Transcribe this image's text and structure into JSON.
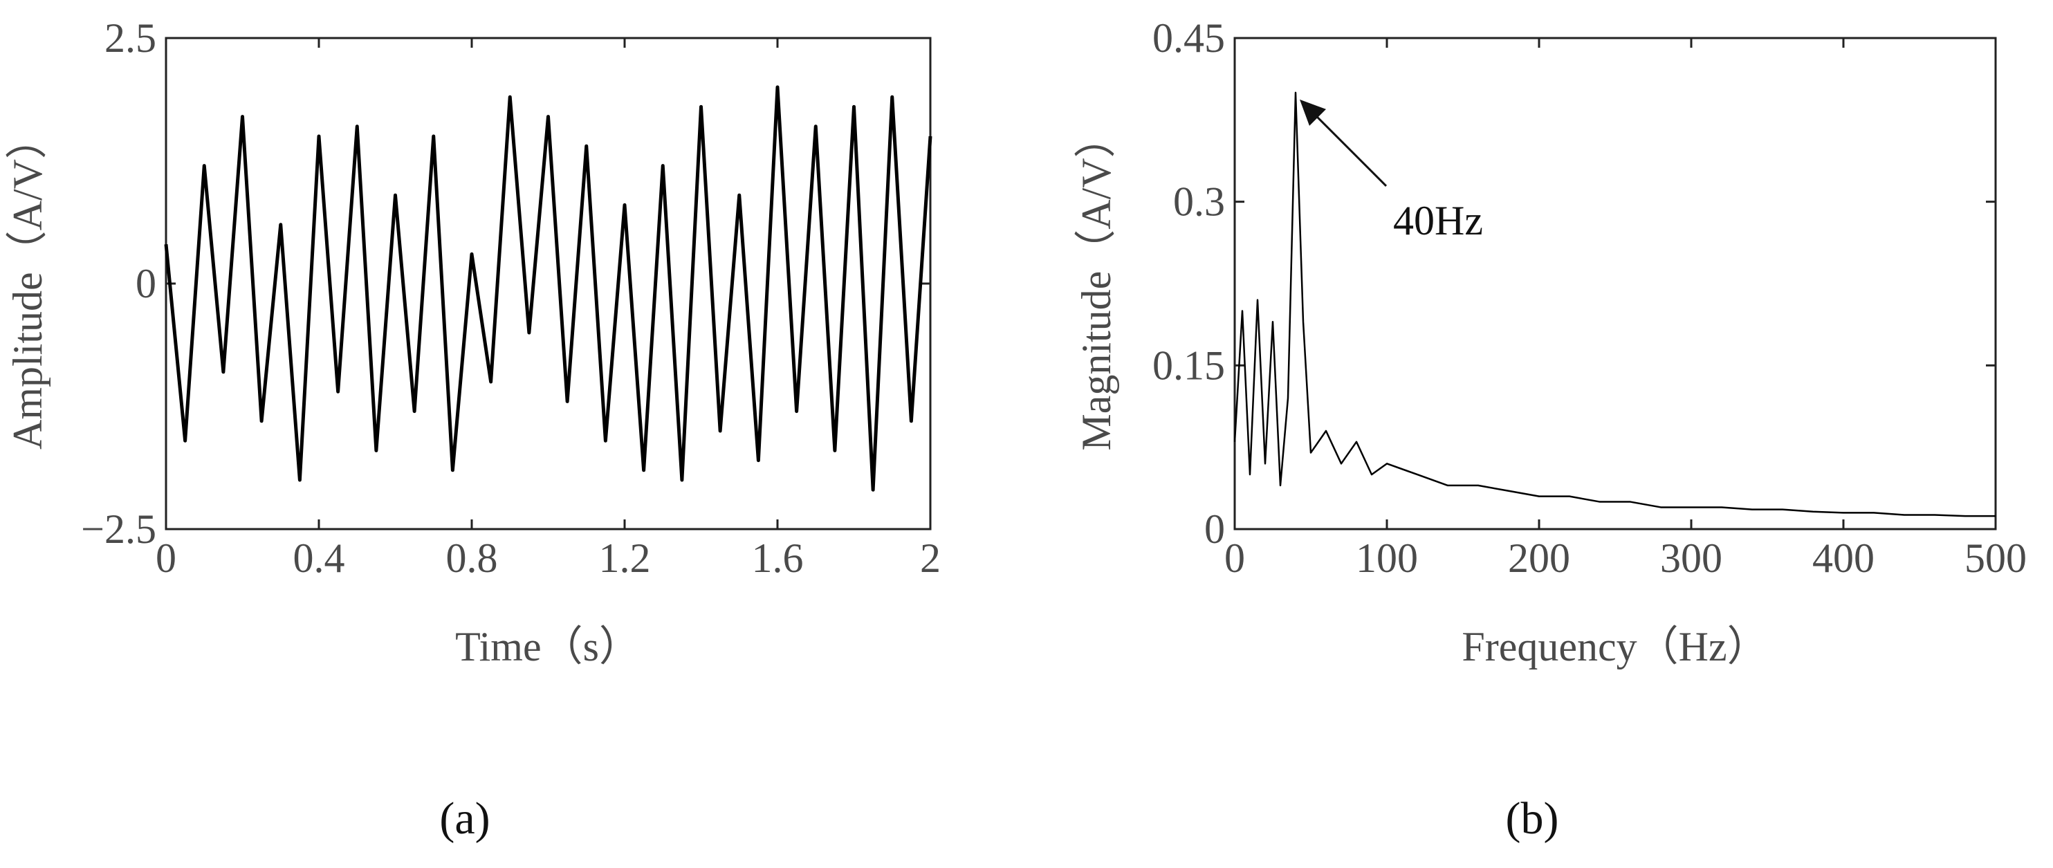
{
  "chart_data": [
    {
      "panel": "(a)",
      "type": "line",
      "xlabel": "Time（s）",
      "ylabel": "Amplitude（A/V）",
      "xlim": [
        0,
        2
      ],
      "ylim": [
        -2.5,
        2.5
      ],
      "xticks": [
        "0",
        "0.4",
        "0.8",
        "1.2",
        "1.6",
        "2"
      ],
      "yticks": [
        "−2.5",
        "0",
        "2.5"
      ],
      "grid": false,
      "line_color": "#000000",
      "series": [
        {
          "x": [
            0.0,
            0.05,
            0.1,
            0.15,
            0.2,
            0.25,
            0.3,
            0.35,
            0.4,
            0.45,
            0.5,
            0.55,
            0.6,
            0.65,
            0.7,
            0.75,
            0.8,
            0.85,
            0.9,
            0.95,
            1.0,
            1.05,
            1.1,
            1.15,
            1.2,
            1.25,
            1.3,
            1.35,
            1.4,
            1.45,
            1.5,
            1.55,
            1.6,
            1.65,
            1.7,
            1.75,
            1.8,
            1.85,
            1.9,
            1.95,
            2.0
          ],
          "y": [
            0.4,
            -1.6,
            1.2,
            -0.9,
            1.7,
            -1.4,
            0.6,
            -2.0,
            1.5,
            -1.1,
            1.6,
            -1.7,
            0.9,
            -1.3,
            1.5,
            -1.9,
            0.3,
            -1.0,
            1.9,
            -0.5,
            1.7,
            -1.2,
            1.4,
            -1.6,
            0.8,
            -1.9,
            1.2,
            -2.0,
            1.8,
            -1.5,
            0.9,
            -1.8,
            2.0,
            -1.3,
            1.6,
            -1.7,
            1.8,
            -2.1,
            1.9,
            -1.4,
            1.5
          ]
        }
      ]
    },
    {
      "panel": "(b)",
      "type": "line",
      "xlabel": "Frequency（Hz）",
      "ylabel": "Magnitude（A/V）",
      "xlim": [
        0,
        500
      ],
      "ylim": [
        0,
        0.45
      ],
      "xticks": [
        "0",
        "100",
        "200",
        "300",
        "400",
        "500"
      ],
      "yticks": [
        "0",
        "0.15",
        "0.3",
        "0.45"
      ],
      "grid": false,
      "line_color": "#000000",
      "annotation": {
        "text": "40Hz",
        "x": 40,
        "y": 0.4
      },
      "series": [
        {
          "x": [
            0,
            5,
            10,
            15,
            20,
            25,
            30,
            35,
            40,
            45,
            50,
            60,
            70,
            80,
            90,
            100,
            120,
            140,
            160,
            180,
            200,
            220,
            240,
            260,
            280,
            300,
            320,
            340,
            360,
            380,
            400,
            420,
            440,
            460,
            480,
            500
          ],
          "y": [
            0.08,
            0.2,
            0.05,
            0.21,
            0.06,
            0.19,
            0.04,
            0.12,
            0.4,
            0.19,
            0.07,
            0.09,
            0.06,
            0.08,
            0.05,
            0.06,
            0.05,
            0.04,
            0.04,
            0.035,
            0.03,
            0.03,
            0.025,
            0.025,
            0.02,
            0.02,
            0.02,
            0.018,
            0.018,
            0.016,
            0.015,
            0.015,
            0.013,
            0.013,
            0.012,
            0.012
          ]
        }
      ]
    }
  ]
}
